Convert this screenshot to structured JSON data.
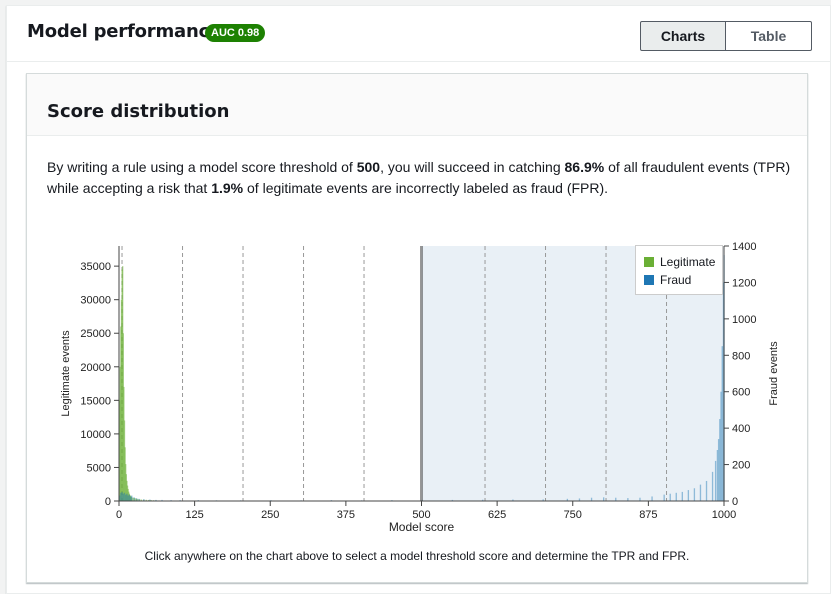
{
  "header": {
    "title": "Model performance",
    "auc_badge": "AUC 0.98",
    "tabs": [
      {
        "label": "Charts",
        "selected": true
      },
      {
        "label": "Table",
        "selected": false
      }
    ]
  },
  "panel": {
    "title": "Score distribution",
    "description": {
      "p1": "By writing a rule using a model score threshold of ",
      "threshold": "500",
      "p2": ", you will succeed in catching ",
      "tpr": "86.9%",
      "p3": " of all fraudulent events (TPR) while accepting a risk that ",
      "fpr": "1.9%",
      "p4": " of legitimate events are incorrectly labeled as fraud (FPR)."
    },
    "footnote": "Click anywhere on the chart above to select a model threshold score and determine the TPR and FPR."
  },
  "colors": {
    "legitimate": "#6aaf35",
    "fraud": "#1f77b4",
    "badge": "#1d8102",
    "selected_region": "#dbe6f0"
  },
  "chart_data": {
    "type": "bar",
    "title": "",
    "xlabel": "Model score",
    "ylabel_left": "Legitimate events",
    "ylabel_right": "Fraud events",
    "xlim": [
      0,
      1000
    ],
    "ylim_left": [
      0,
      38000
    ],
    "ylim_right": [
      0,
      1400
    ],
    "x_ticks": [
      0,
      125,
      250,
      375,
      500,
      625,
      750,
      875,
      1000
    ],
    "y_ticks_left": [
      0,
      5000,
      10000,
      15000,
      20000,
      25000,
      30000,
      35000
    ],
    "y_ticks_right": [
      0,
      200,
      400,
      600,
      800,
      1000,
      1200,
      1400
    ],
    "threshold": 500,
    "selected_range": [
      500,
      1000
    ],
    "vertical_gridlines": [
      5,
      105,
      205,
      305,
      405,
      605,
      705,
      805,
      905
    ],
    "legend_position": "top-right",
    "series": [
      {
        "name": "Legitimate",
        "axis": "left",
        "bins": [
          [
            0,
            15000
          ],
          [
            1,
            20000
          ],
          [
            2,
            26000
          ],
          [
            3,
            30000
          ],
          [
            4,
            34500
          ],
          [
            5,
            35000
          ],
          [
            6,
            25000
          ],
          [
            7,
            17000
          ],
          [
            8,
            12000
          ],
          [
            9,
            8000
          ],
          [
            10,
            5500
          ],
          [
            11,
            4000
          ],
          [
            12,
            3000
          ],
          [
            13,
            2300
          ],
          [
            14,
            1800
          ],
          [
            15,
            1400
          ],
          [
            16,
            1100
          ],
          [
            17,
            900
          ],
          [
            18,
            750
          ],
          [
            19,
            650
          ],
          [
            20,
            550
          ],
          [
            22,
            500
          ],
          [
            24,
            450
          ],
          [
            26,
            400
          ],
          [
            28,
            350
          ],
          [
            30,
            300
          ],
          [
            33,
            260
          ],
          [
            36,
            220
          ],
          [
            40,
            200
          ],
          [
            44,
            180
          ],
          [
            48,
            160
          ],
          [
            52,
            140
          ],
          [
            56,
            120
          ],
          [
            60,
            100
          ],
          [
            65,
            80
          ],
          [
            70,
            60
          ],
          [
            80,
            40
          ],
          [
            100,
            30
          ],
          [
            150,
            20
          ],
          [
            300,
            10
          ],
          [
            600,
            10
          ],
          [
            900,
            10
          ]
        ]
      },
      {
        "name": "Fraud",
        "axis": "right",
        "bins": [
          [
            0,
            30
          ],
          [
            2,
            45
          ],
          [
            4,
            50
          ],
          [
            6,
            40
          ],
          [
            8,
            45
          ],
          [
            10,
            35
          ],
          [
            12,
            40
          ],
          [
            14,
            30
          ],
          [
            16,
            35
          ],
          [
            18,
            25
          ],
          [
            20,
            30
          ],
          [
            24,
            20
          ],
          [
            28,
            15
          ],
          [
            32,
            12
          ],
          [
            40,
            10
          ],
          [
            50,
            8
          ],
          [
            60,
            6
          ],
          [
            70,
            6
          ],
          [
            85,
            5
          ],
          [
            100,
            5
          ],
          [
            130,
            5
          ],
          [
            160,
            4
          ],
          [
            200,
            4
          ],
          [
            250,
            5
          ],
          [
            300,
            4
          ],
          [
            350,
            5
          ],
          [
            400,
            4
          ],
          [
            450,
            5
          ],
          [
            500,
            6
          ],
          [
            550,
            6
          ],
          [
            600,
            7
          ],
          [
            650,
            8
          ],
          [
            700,
            9
          ],
          [
            740,
            12
          ],
          [
            760,
            14
          ],
          [
            780,
            18
          ],
          [
            800,
            20
          ],
          [
            820,
            18
          ],
          [
            840,
            16
          ],
          [
            860,
            18
          ],
          [
            880,
            25
          ],
          [
            900,
            35
          ],
          [
            910,
            40
          ],
          [
            920,
            45
          ],
          [
            930,
            50
          ],
          [
            940,
            60
          ],
          [
            950,
            70
          ],
          [
            960,
            90
          ],
          [
            970,
            110
          ],
          [
            980,
            160
          ],
          [
            985,
            220
          ],
          [
            988,
            280
          ],
          [
            990,
            340
          ],
          [
            992,
            450
          ],
          [
            994,
            600
          ],
          [
            996,
            850
          ],
          [
            998,
            1200
          ],
          [
            999,
            1350
          ]
        ]
      }
    ]
  }
}
